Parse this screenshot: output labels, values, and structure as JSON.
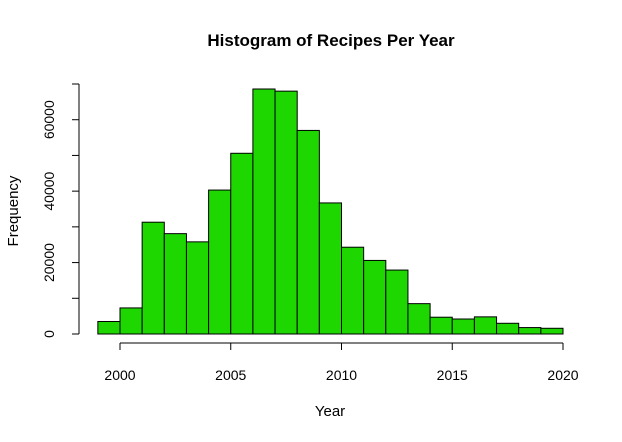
{
  "chart_data": {
    "type": "bar",
    "title": "Histogram of Recipes Per Year",
    "xlabel": "Year",
    "ylabel": "Frequency",
    "bin_width": 1,
    "bins": [
      {
        "start": 1999,
        "end": 2000,
        "value": 3500
      },
      {
        "start": 2000,
        "end": 2001,
        "value": 7300
      },
      {
        "start": 2001,
        "end": 2002,
        "value": 31300
      },
      {
        "start": 2002,
        "end": 2003,
        "value": 28100
      },
      {
        "start": 2003,
        "end": 2004,
        "value": 25800
      },
      {
        "start": 2004,
        "end": 2005,
        "value": 40300
      },
      {
        "start": 2005,
        "end": 2006,
        "value": 50600
      },
      {
        "start": 2006,
        "end": 2007,
        "value": 68600
      },
      {
        "start": 2007,
        "end": 2008,
        "value": 68000
      },
      {
        "start": 2008,
        "end": 2009,
        "value": 57000
      },
      {
        "start": 2009,
        "end": 2010,
        "value": 36700
      },
      {
        "start": 2010,
        "end": 2011,
        "value": 24300
      },
      {
        "start": 2011,
        "end": 2012,
        "value": 20600
      },
      {
        "start": 2012,
        "end": 2013,
        "value": 17900
      },
      {
        "start": 2013,
        "end": 2014,
        "value": 8500
      },
      {
        "start": 2014,
        "end": 2015,
        "value": 4700
      },
      {
        "start": 2015,
        "end": 2016,
        "value": 4200
      },
      {
        "start": 2016,
        "end": 2017,
        "value": 4800
      },
      {
        "start": 2017,
        "end": 2018,
        "value": 3000
      },
      {
        "start": 2018,
        "end": 2019,
        "value": 1800
      },
      {
        "start": 2019,
        "end": 2020,
        "value": 1600
      }
    ],
    "xlim": [
      1999,
      2020
    ],
    "ylim": [
      0,
      70000
    ],
    "x_ticks": [
      2000,
      2005,
      2010,
      2015,
      2020
    ],
    "y_ticks": [
      0,
      20000,
      40000,
      60000
    ],
    "y_minor_ticks": [
      0,
      10000,
      20000,
      30000,
      40000,
      50000,
      60000,
      70000
    ],
    "grid": false,
    "bar_color": "#1ed600",
    "edge_color": "#000000"
  }
}
